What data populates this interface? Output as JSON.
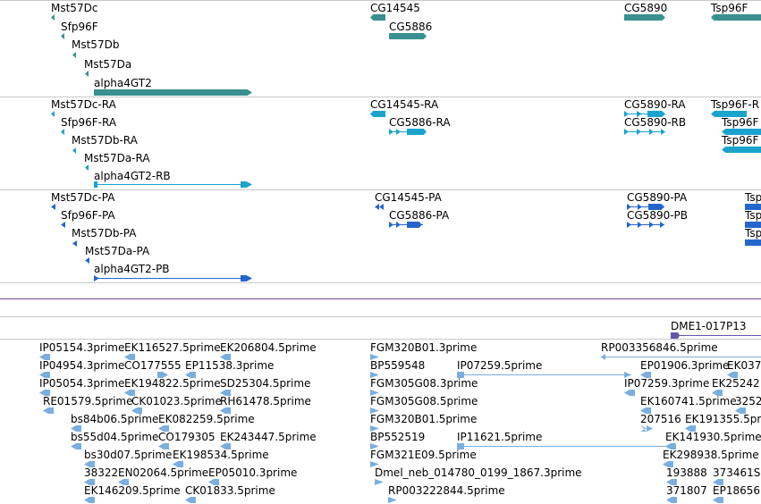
{
  "colors": {
    "gene": "#3a8f8f",
    "transcript": "#1aa3cc",
    "protein": "#2466cc",
    "est": "#7aaedf",
    "clone": "#6655aa",
    "separator": "#c8c8c8"
  },
  "tracks": {
    "genes": {
      "labels": [
        "Mst57Dc",
        "Sfp96F",
        "Mst57Db",
        "Mst57Da",
        "alpha4GT2",
        "CG14545",
        "CG5886",
        "CG5890",
        "Tsp96F"
      ]
    },
    "transcripts": {
      "labels": [
        "Mst57Dc-RA",
        "Sfp96F-RA",
        "Mst57Db-RA",
        "Mst57Da-RA",
        "alpha4GT2-RB",
        "CG14545-RA",
        "CG5886-RA",
        "CG5890-RA",
        "CG5890-RB",
        "Tsp96F-R",
        "Tsp96F",
        "Tsp96F"
      ]
    },
    "proteins": {
      "labels": [
        "Mst57Dc-PA",
        "Sfp96F-PA",
        "Mst57Db-PA",
        "Mst57Da-PA",
        "alpha4GT2-PB",
        "CG14545-PA",
        "CG5886-PA",
        "CG5890-PA",
        "CG5890-PB",
        "Tsp",
        "Tsp",
        "Tsp"
      ]
    },
    "clones": {
      "labels": [
        "DME1-017P13"
      ]
    },
    "ests": {
      "labels": [
        "IP05154.3prime",
        "EK116527.5prime",
        "EK206804.5prime",
        "FGM320B01.3prime",
        "RP003356846.5prime",
        "IP04954.3prime",
        "CO177555",
        "EP11538.3prime",
        "BP559548",
        "IP07259.5prime",
        "EP01906.3prime",
        "EK037",
        "IP05054.3prime",
        "EK194822.5prime",
        "SD25304.5prime",
        "FGM305G08.3prime",
        "IP07259.3prime",
        "EK25242",
        "RE01579.5prime",
        "CK01023.5prime",
        "RH61478.5prime",
        "FGM305G08.5prime",
        "EK160741.5prime",
        "3252",
        "bs84b06.5prime",
        "EK082259.5prime",
        "FGM320B01.5prime",
        "207516",
        "EK191355.5prime",
        "bs55d04.5prime",
        "CO179305",
        "EK243447.5prime",
        "BP552519",
        "IP11621.5prime",
        "EK141930.5prime",
        "bs30d07.5prime",
        "EK198534.5prime",
        "FGM321E09.5prime",
        "EK298938.5prime",
        "38322",
        "EN02064.5prime",
        "EP05010.3prime",
        "Dmel_neb_014780_0199_1867.3prime",
        "193888",
        "373461S",
        "EK146209.5prime",
        "CK01833.5prime",
        "RP003222844.5prime",
        "371807",
        "EP18656"
      ]
    }
  }
}
